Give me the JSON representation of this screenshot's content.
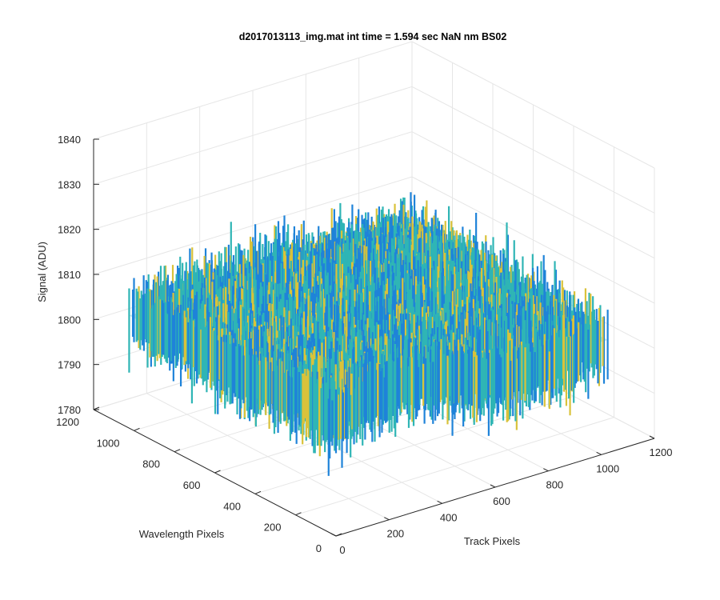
{
  "chart_data": {
    "type": "surface",
    "title": "d2017013113_img.mat int time = 1.594 sec  NaN nm BS02",
    "xlabel": "Track Pixels",
    "ylabel": "Wavelength Pixels",
    "zlabel": "Signal (ADU)",
    "xlim": [
      0,
      1200
    ],
    "ylim": [
      0,
      1200
    ],
    "zlim": [
      1780,
      1840
    ],
    "x_ticks": [
      "0",
      "200",
      "400",
      "600",
      "800",
      "1000",
      "1200"
    ],
    "y_ticks": [
      "0",
      "200",
      "400",
      "600",
      "800",
      "1000",
      "1200"
    ],
    "z_ticks": [
      "1780",
      "1790",
      "1800",
      "1810",
      "1820",
      "1830",
      "1840"
    ],
    "grid": true,
    "colormap": "parula",
    "surface_extent": {
      "track_pixels": [
        0,
        1024
      ],
      "wavelength_pixels": [
        0,
        1024
      ]
    },
    "signal_mean": 1805,
    "signal_range": [
      1790,
      1835
    ],
    "colors": {
      "low": "#1f83d9",
      "mid": "#2fb5b5",
      "high": "#d9c23a"
    }
  }
}
